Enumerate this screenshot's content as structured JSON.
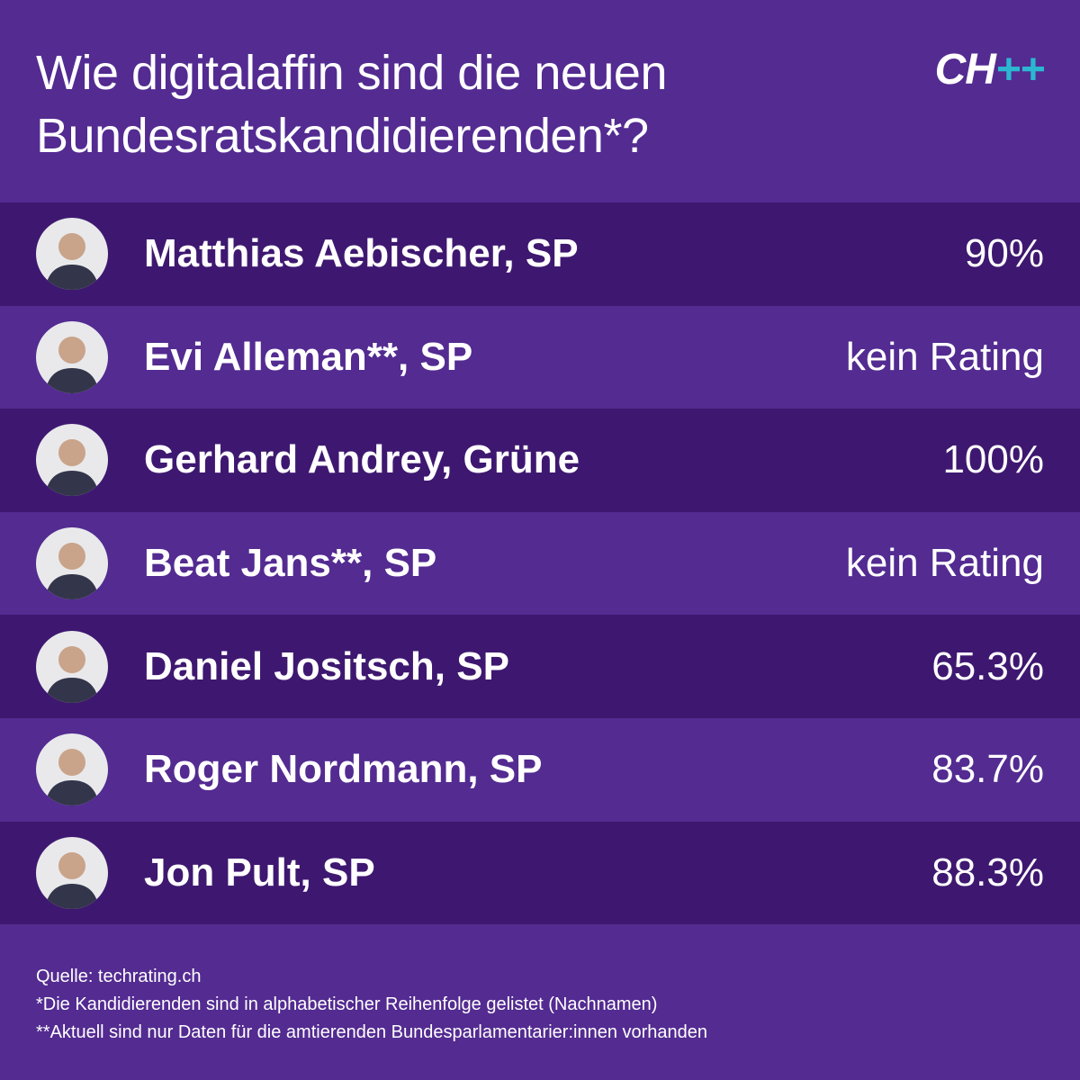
{
  "header": {
    "title_lines": [
      "Wie digitalaffin sind die neuen",
      "Bundesratskandidierenden*?"
    ],
    "logo": {
      "text": "CH",
      "accent": "++"
    }
  },
  "table": {
    "rows": [
      [
        "Matthias Aebischer, SP",
        "90%"
      ],
      [
        "Evi Alleman**, SP",
        "kein Rating"
      ],
      [
        "Gerhard Andrey, Grüne",
        "100%"
      ],
      [
        "Beat Jans**, SP",
        "kein Rating"
      ],
      [
        "Daniel Jositsch, SP",
        "65.3%"
      ],
      [
        "Roger Nordmann, SP",
        "83.7%"
      ],
      [
        "Jon Pult, SP",
        "88.3%"
      ]
    ]
  },
  "footer": {
    "notes": [
      "Quelle: techrating.ch",
      "*Die Kandidierenden sind in alphabetischer Reihenfolge gelistet (Nachnamen)",
      "**Aktuell sind nur Daten für die amtierenden Bundesparlamentarier:innen vorhanden"
    ]
  }
}
